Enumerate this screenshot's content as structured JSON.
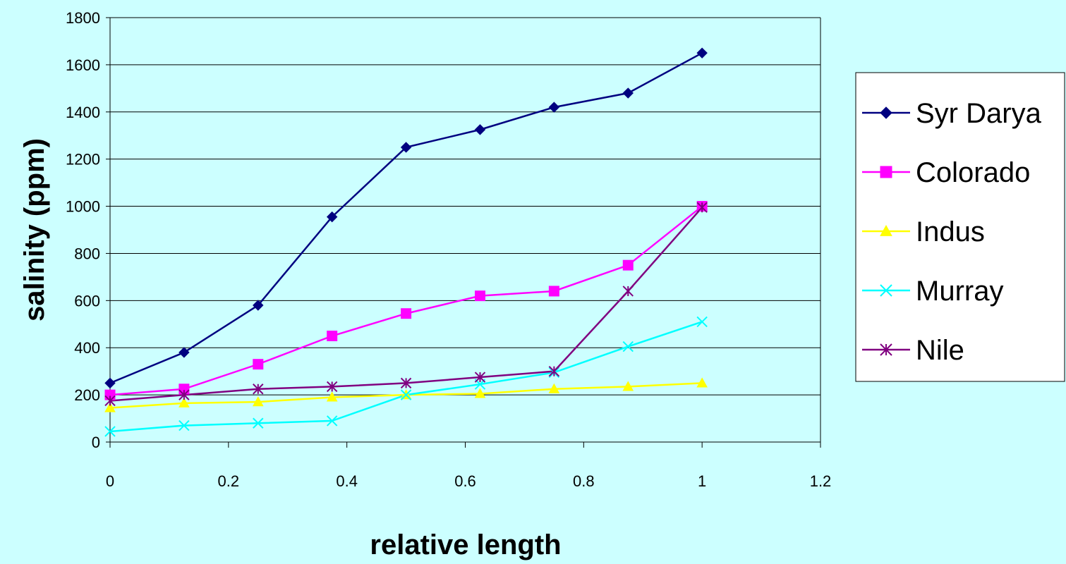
{
  "chart_data": {
    "type": "line",
    "title": "",
    "xlabel": "relative length",
    "ylabel": "salinity (ppm)",
    "xlim": [
      0,
      1.2
    ],
    "ylim": [
      0,
      1800
    ],
    "x_ticks": [
      "0",
      "0.2",
      "0.4",
      "0.6",
      "0.8",
      "1",
      "1.2"
    ],
    "y_ticks": [
      "0",
      "200",
      "400",
      "600",
      "800",
      "1000",
      "1200",
      "1400",
      "1600",
      "1800"
    ],
    "grid": "horizontal",
    "legend_position": "right",
    "series": [
      {
        "name": "Syr Darya",
        "color": "#000080",
        "marker": "diamond",
        "x": [
          0,
          0.125,
          0.25,
          0.375,
          0.5,
          0.625,
          0.75,
          0.875,
          1
        ],
        "values": [
          250,
          380,
          580,
          955,
          1250,
          1325,
          1420,
          1480,
          1650
        ]
      },
      {
        "name": "Colorado",
        "color": "#ff00ff",
        "marker": "square",
        "x": [
          0,
          0.125,
          0.25,
          0.375,
          0.5,
          0.625,
          0.75,
          0.875,
          1
        ],
        "values": [
          200,
          225,
          330,
          450,
          545,
          620,
          640,
          750,
          1000
        ]
      },
      {
        "name": "Indus",
        "color": "#ffff00",
        "marker": "triangle",
        "x": [
          0,
          0.125,
          0.25,
          0.375,
          0.5,
          0.625,
          0.75,
          0.875,
          1
        ],
        "values": [
          145,
          165,
          170,
          190,
          200,
          205,
          225,
          235,
          250
        ]
      },
      {
        "name": "Murray",
        "color": "#00ffff",
        "marker": "x",
        "x": [
          0,
          0.125,
          0.25,
          0.375,
          0.5,
          0.625,
          0.75,
          0.875,
          1
        ],
        "values": [
          45,
          70,
          80,
          90,
          200,
          245,
          295,
          405,
          510
        ]
      },
      {
        "name": "Nile",
        "color": "#800080",
        "marker": "asterisk",
        "x": [
          0,
          0.125,
          0.25,
          0.375,
          0.5,
          0.625,
          0.75,
          0.875,
          1
        ],
        "values": [
          175,
          200,
          225,
          235,
          250,
          275,
          300,
          640,
          995
        ]
      }
    ]
  }
}
